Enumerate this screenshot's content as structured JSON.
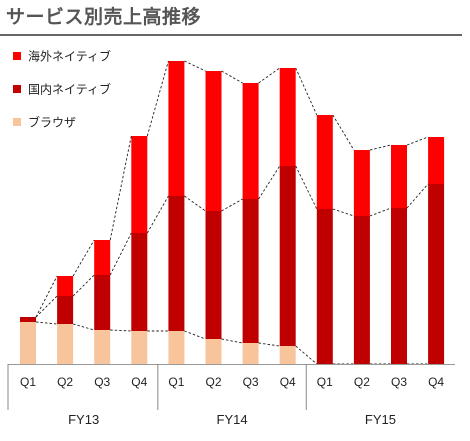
{
  "chart_data": {
    "type": "bar",
    "stacked": true,
    "title": "サービス別売上高推移",
    "categories": [
      "Q1",
      "Q2",
      "Q3",
      "Q4",
      "Q1",
      "Q2",
      "Q3",
      "Q4",
      "Q1",
      "Q2",
      "Q3",
      "Q4"
    ],
    "groups": [
      {
        "label": "FY13",
        "start": 0,
        "end": 3
      },
      {
        "label": "FY14",
        "start": 4,
        "end": 7
      },
      {
        "label": "FY15",
        "start": 8,
        "end": 11
      }
    ],
    "series": [
      {
        "name": "ブラウザ",
        "color": "#f8c49c",
        "values": [
          42,
          40,
          34,
          33,
          33,
          25,
          21,
          18,
          0,
          0,
          0,
          0
        ]
      },
      {
        "name": "国内ネイティブ",
        "color": "#c00000",
        "values": [
          5,
          28,
          55,
          98,
          135,
          128,
          144,
          180,
          155,
          148,
          156,
          180
        ]
      },
      {
        "name": "海外ネイティブ",
        "color": "#ff0000",
        "values": [
          0,
          20,
          35,
          97,
          135,
          140,
          116,
          98,
          94,
          66,
          63,
          47
        ]
      }
    ],
    "ylim": [
      0,
      302
    ],
    "legend_position": "top-left",
    "trend_lines": "dashed",
    "grid": false
  }
}
